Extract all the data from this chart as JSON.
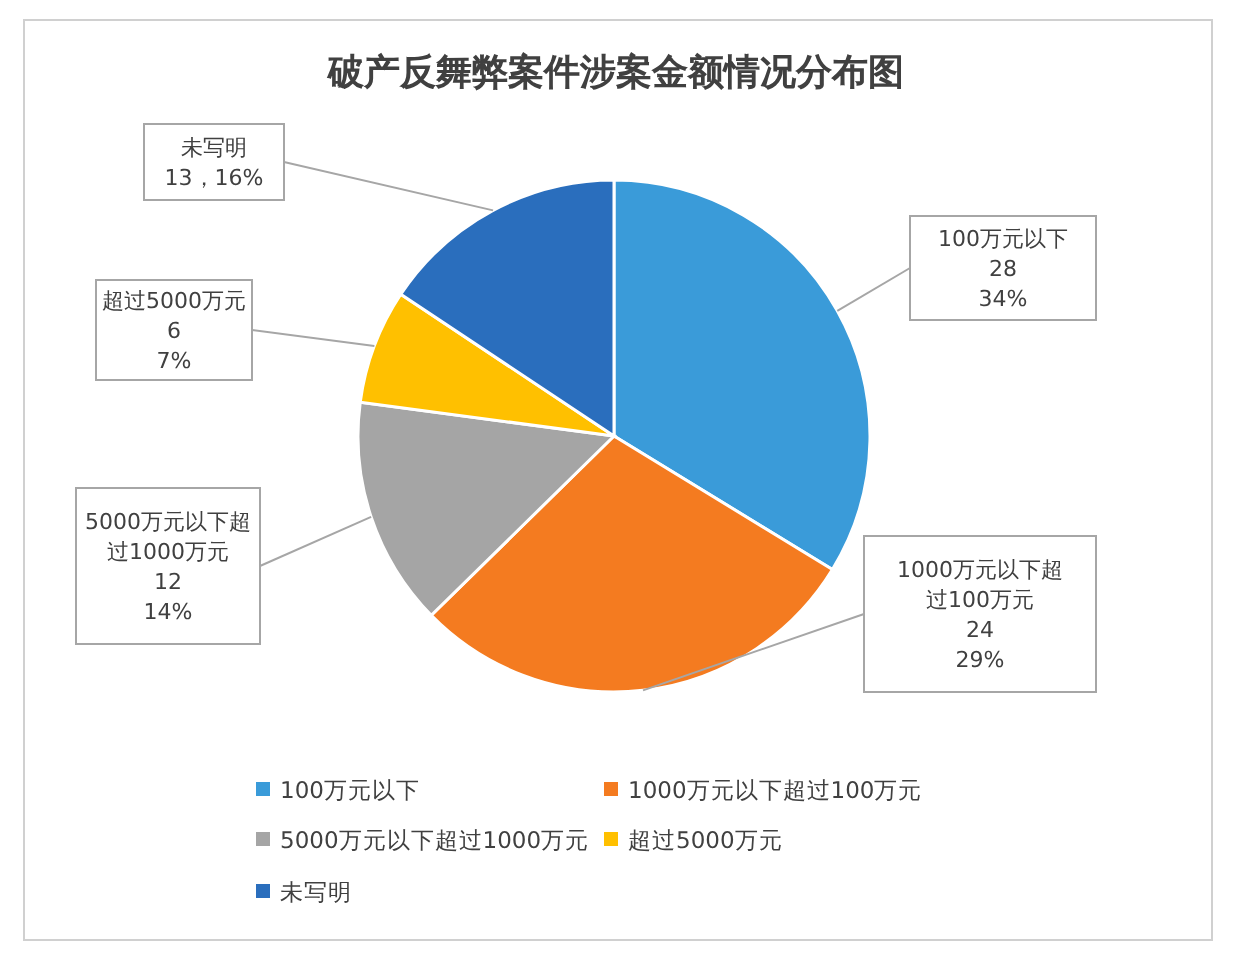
{
  "chart_data": {
    "type": "pie",
    "title": "破产反舞弊案件涉案金额情况分布图",
    "categories": [
      "100万元以下",
      "1000万元以下超过100万元",
      "5000万元以下超过1000万元",
      "超过5000万元",
      "未写明"
    ],
    "values": [
      28,
      24,
      12,
      6,
      13
    ],
    "value_labels": [
      "28\n34%",
      "24\n29%",
      "12\n14%",
      "6\n7%",
      "13，16%"
    ],
    "colors": [
      "#3a9bd9",
      "#f47b20",
      "#a5a5a5",
      "#ffc000",
      "#2a6ebd"
    ],
    "legend": "bottom"
  }
}
